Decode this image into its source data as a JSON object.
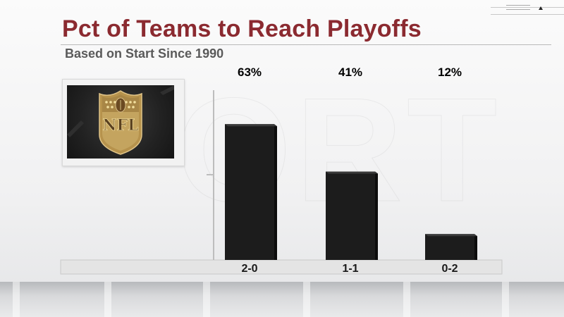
{
  "header": {
    "title": "Pct of Teams to Reach Playoffs",
    "subtitle": "Based on Start Since 1990"
  },
  "logo": {
    "text": "NFL",
    "icon": "nfl-shield-logo"
  },
  "colors": {
    "title": "#8b2a30",
    "bar": "#1c1c1c",
    "label": "#000000"
  },
  "chart_data": {
    "type": "bar",
    "title": "Pct of Teams to Reach Playoffs",
    "subtitle": "Based on Start Since 1990",
    "categories": [
      "2-0",
      "1-1",
      "0-2"
    ],
    "values": [
      63,
      41,
      12
    ],
    "value_labels": [
      "63%",
      "41%",
      "12%"
    ],
    "xlabel": "",
    "ylabel": "",
    "ylim": [
      0,
      100
    ],
    "grid": false,
    "legend": "none"
  }
}
